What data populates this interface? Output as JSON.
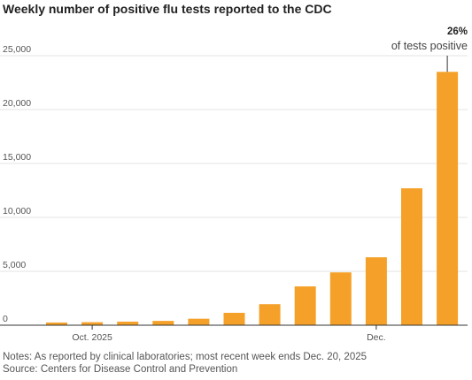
{
  "chart_data": {
    "type": "bar",
    "title": "Weekly number of positive flu tests reported to the CDC",
    "xlabel": "",
    "ylabel": "",
    "ylim": [
      0,
      25000
    ],
    "y_ticks": [
      0,
      5000,
      10000,
      15000,
      20000,
      25000
    ],
    "y_tick_labels": [
      "0",
      "5,000",
      "10,000",
      "15,000",
      "20,000",
      "25,000"
    ],
    "x_tick_labels": [
      {
        "label": "Oct. 2025",
        "at_index": 1
      },
      {
        "label": "Dec.",
        "at_index": 9
      }
    ],
    "values": [
      250,
      280,
      330,
      400,
      600,
      1150,
      1950,
      3600,
      4900,
      6300,
      12700,
      23500
    ],
    "color": "#f5a129",
    "grid": true,
    "annotation": {
      "index": 11,
      "value_text": "26%",
      "text": "of tests positive"
    }
  },
  "notes": "Notes: As reported by clinical laboratories; most recent week ends Dec. 20, 2025",
  "source": "Source: Centers for Disease Control and Prevention"
}
